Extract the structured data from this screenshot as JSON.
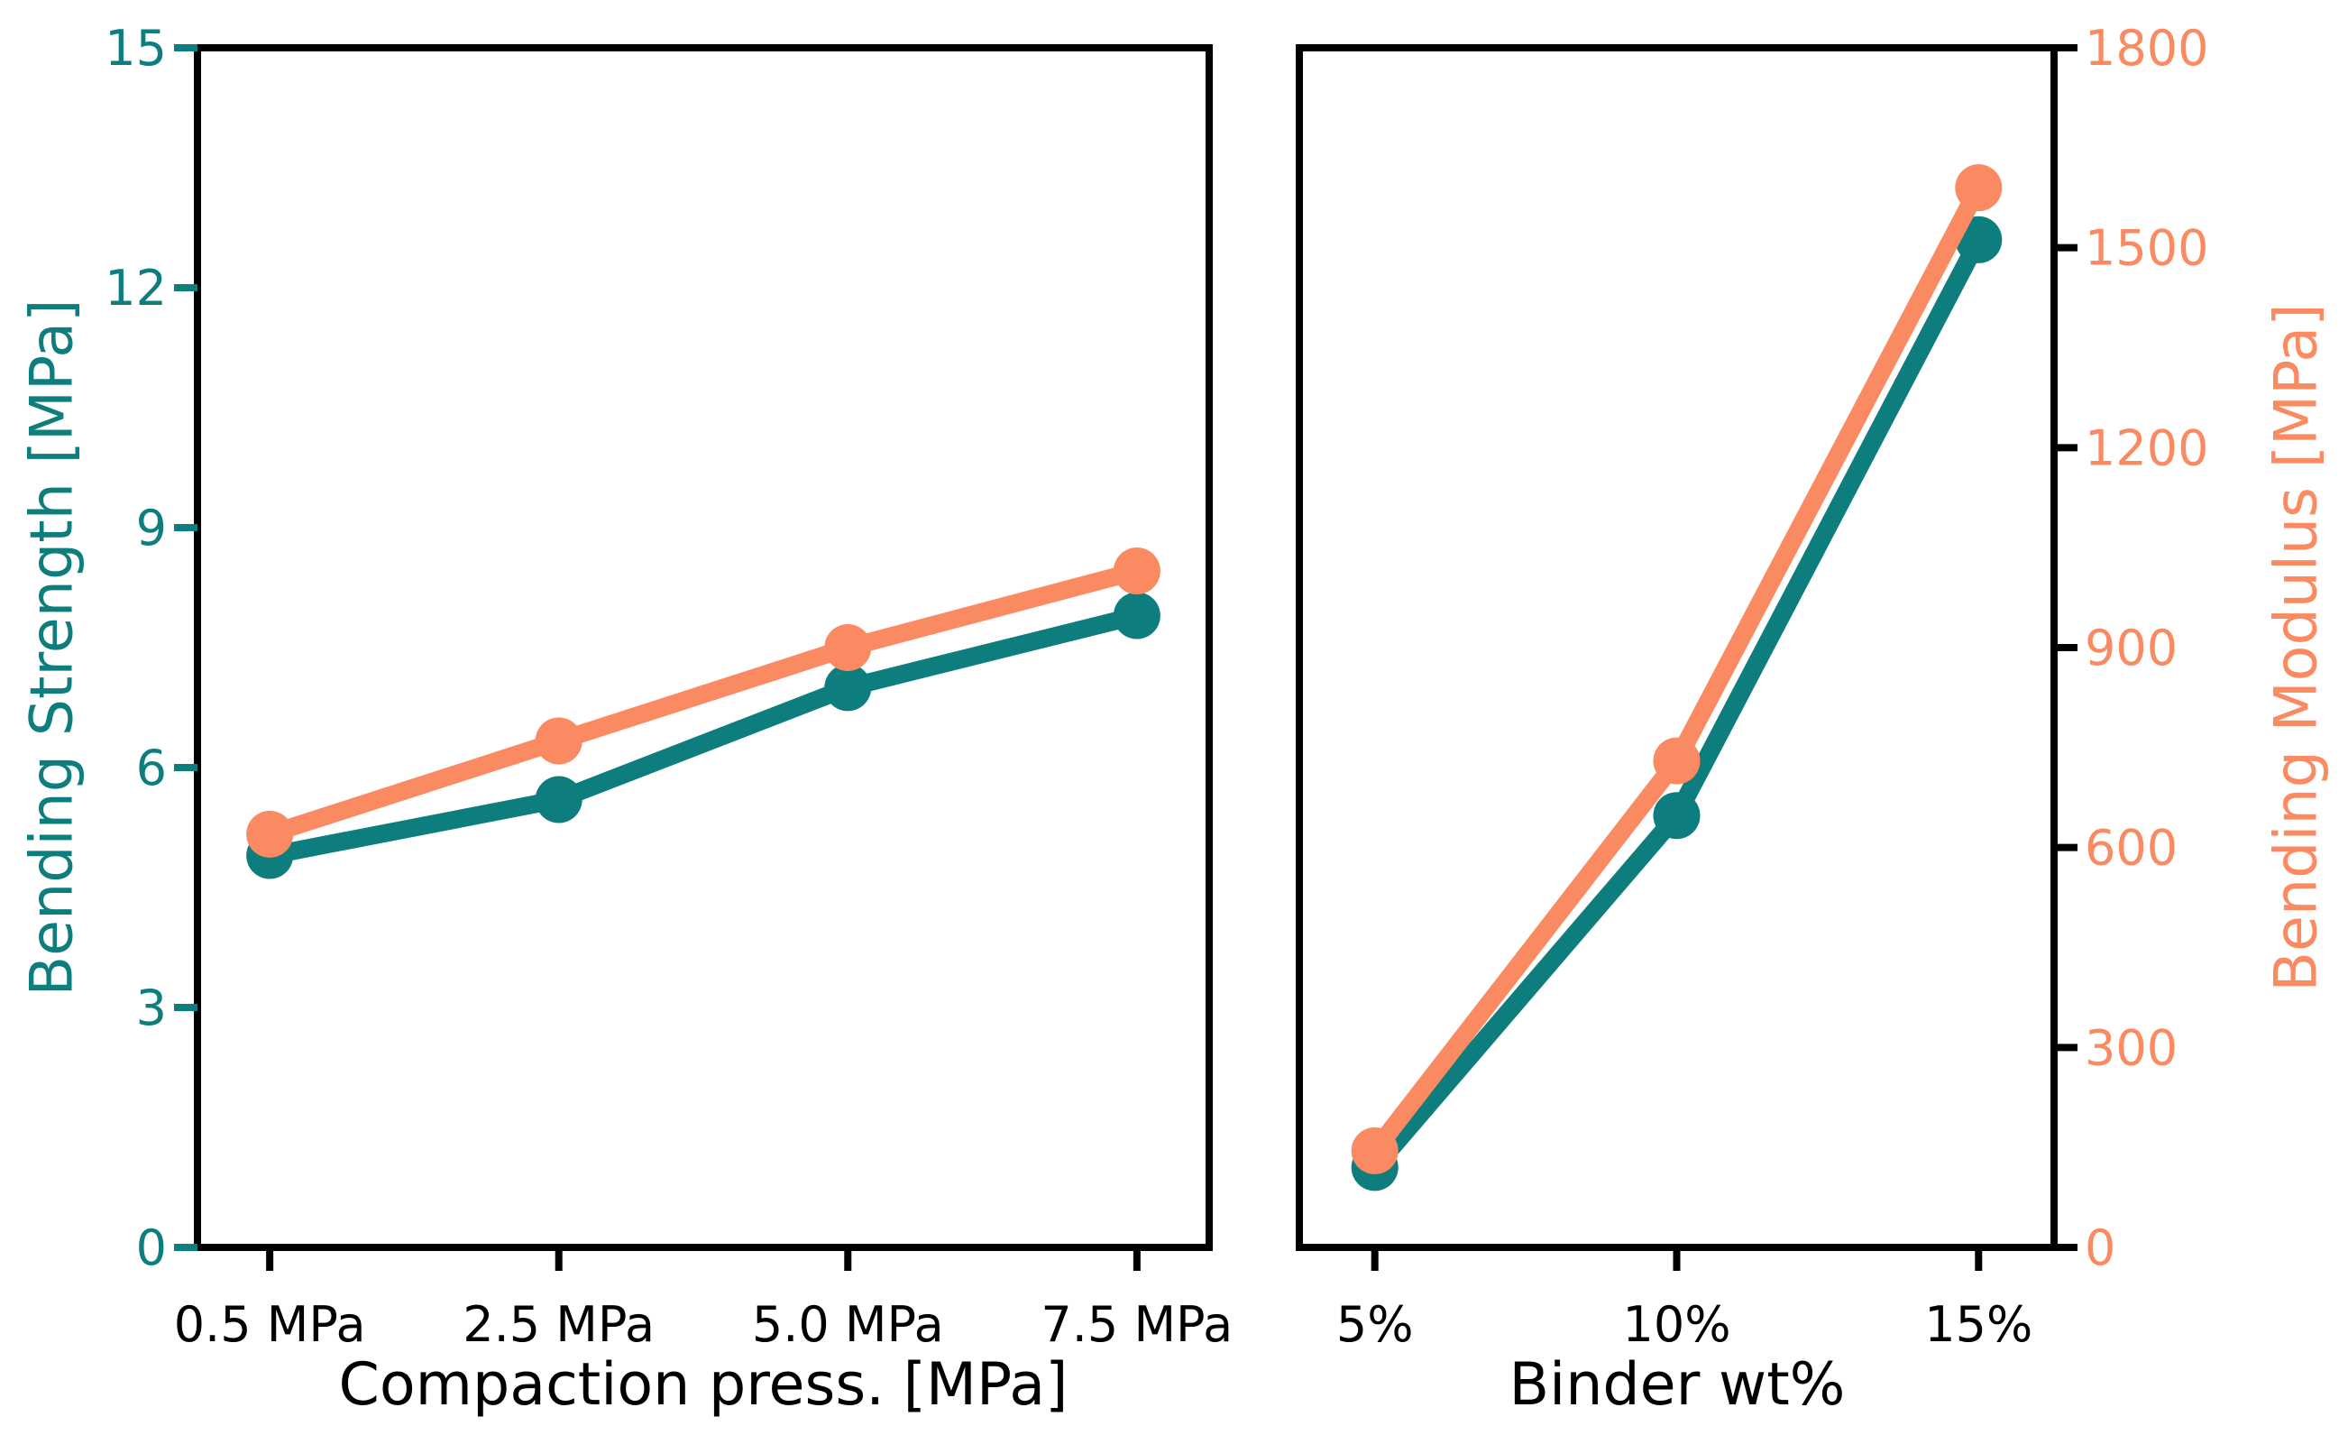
{
  "figure": {
    "background": "#ffffff"
  },
  "colors": {
    "teal": "#0e7d7d",
    "orange": "#fa8a61",
    "axis": "#000000",
    "background": "#ffffff"
  },
  "chart_data": [
    {
      "type": "line",
      "title": "",
      "xlabel": "Compaction press. [MPa]",
      "ylabel": "Bending Strength [MPa]",
      "ylabel_side": "left",
      "categories": [
        "0.5 MPa",
        "2.5 MPa",
        "5.0 MPa",
        "7.5 MPa"
      ],
      "yticks_left": [
        "0",
        "3",
        "6",
        "9",
        "12",
        "15"
      ],
      "ylim_left": [
        0,
        15
      ],
      "ylim_right": [
        0,
        1800
      ],
      "grid": false,
      "legend": null,
      "series": [
        {
          "name": "Bending Strength",
          "yaxis": "left",
          "color_key": "teal",
          "marker": "circle",
          "values": [
            4.9,
            5.6,
            7.0,
            7.9
          ]
        },
        {
          "name": "Bending Modulus",
          "yaxis": "right",
          "color_key": "orange",
          "marker": "circle",
          "values": [
            620,
            760,
            900,
            1015
          ]
        }
      ]
    },
    {
      "type": "line",
      "title": "",
      "xlabel": "Binder wt%",
      "ylabel": "Bending Modulus [MPa]",
      "ylabel_side": "right",
      "categories": [
        "5%",
        "10%",
        "15%"
      ],
      "yticks_right": [
        "0",
        "300",
        "600",
        "900",
        "1200",
        "1500",
        "1800"
      ],
      "ylim_left": [
        0,
        15
      ],
      "ylim_right": [
        0,
        1800
      ],
      "grid": false,
      "legend": null,
      "series": [
        {
          "name": "Bending Strength",
          "yaxis": "left",
          "color_key": "teal",
          "marker": "circle",
          "values": [
            1.0,
            5.4,
            12.6
          ]
        },
        {
          "name": "Bending Modulus",
          "yaxis": "right",
          "color_key": "orange",
          "marker": "circle",
          "values": [
            145,
            730,
            1590
          ]
        }
      ]
    }
  ]
}
